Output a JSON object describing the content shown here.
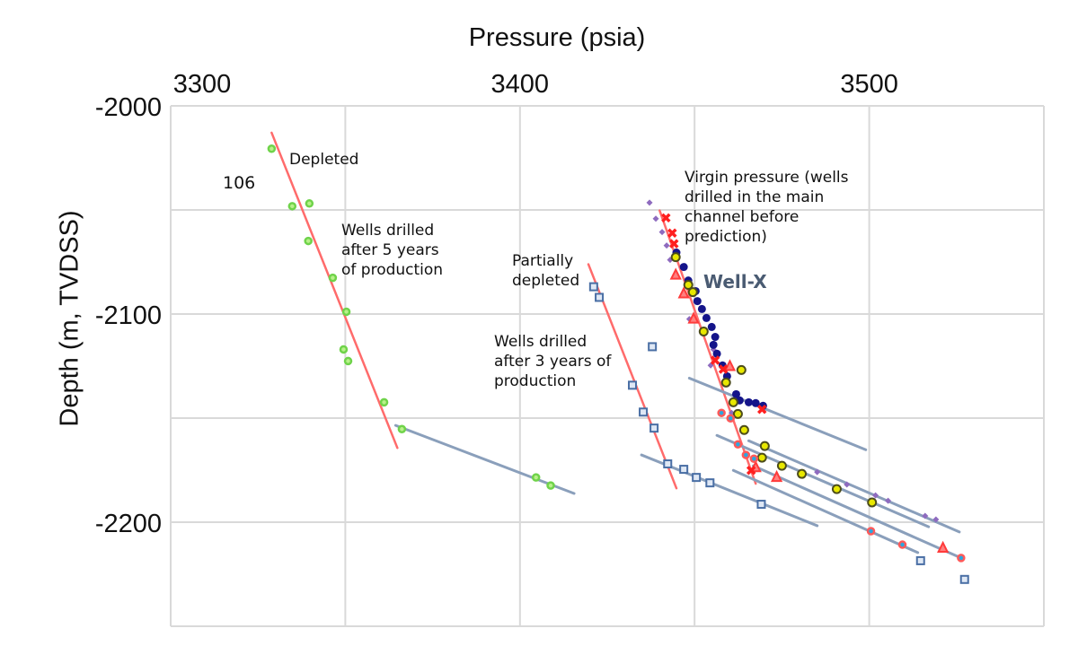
{
  "chart_data": {
    "type": "scatter",
    "title": "",
    "xlabel": "Pressure (psia)",
    "ylabel": "Depth (m, TVDSS)",
    "xlim": [
      3300,
      3550
    ],
    "ylim": [
      -2250,
      -2000
    ],
    "x_axis_position": "top",
    "x_ticks": [
      3300,
      3400,
      3500
    ],
    "x_tick_labels": [
      "3300",
      "3400",
      "3500"
    ],
    "x_gridlines": [
      3300,
      3350,
      3400,
      3450,
      3500,
      3550
    ],
    "y_ticks": [
      -2000,
      -2100,
      -2200
    ],
    "y_tick_labels": [
      "-2000",
      "-2100",
      "-2200"
    ],
    "y_gridlines": [
      -2000,
      -2050,
      -2100,
      -2150,
      -2200,
      -2250
    ],
    "grid": true,
    "colors": {
      "grid": "#d9d9d9",
      "trend_red": "#ff6b6b",
      "trend_blue": "#8a9fbb"
    },
    "annotations": {
      "depleted": "Depleted",
      "label_106": "106",
      "after5": "Wells drilled\nafter 5 years\nof production",
      "partially": "Partially\ndepleted",
      "after3": "Wells drilled\nafter 3 years of\nproduction",
      "virgin": "Virgin pressure (wells\ndrilled in the main\nchannel before\nprediction)",
      "wellx": "Well-X"
    },
    "series": [
      {
        "marker": "green-circle",
        "color": "#6fd34a",
        "points": [
          [
            3328.9,
            -2020.6
          ],
          [
            3334.8,
            -2048.2
          ],
          [
            3339.7,
            -2046.9
          ],
          [
            3339.4,
            -2064.9
          ],
          [
            3346.4,
            -2082.6
          ],
          [
            3350.3,
            -2098.9
          ],
          [
            3349.5,
            -2117.0
          ],
          [
            3350.8,
            -2122.6
          ],
          [
            3361.1,
            -2142.4
          ],
          [
            3366.2,
            -2155.3
          ],
          [
            3404.6,
            -2178.5
          ],
          [
            3408.8,
            -2182.4
          ]
        ]
      },
      {
        "marker": "blue-square",
        "color": "#4a6fa5",
        "points": [
          [
            3421.1,
            -2086.9
          ],
          [
            3422.7,
            -2092.0
          ],
          [
            3437.9,
            -2115.7
          ],
          [
            3432.2,
            -2134.2
          ],
          [
            3435.3,
            -2147.1
          ],
          [
            3438.4,
            -2154.8
          ],
          [
            3442.3,
            -2172.0
          ],
          [
            3446.9,
            -2174.6
          ],
          [
            3450.5,
            -2178.5
          ],
          [
            3454.4,
            -2181.1
          ],
          [
            3469.1,
            -2191.4
          ],
          [
            3514.7,
            -2218.5
          ],
          [
            3527.3,
            -2227.5
          ]
        ]
      },
      {
        "marker": "purple-diamond",
        "color": "#8e6bbf",
        "points": [
          [
            3437.1,
            -2046.5
          ],
          [
            3438.9,
            -2054.2
          ],
          [
            3440.7,
            -2060.6
          ],
          [
            3442.0,
            -2067.1
          ],
          [
            3443.0,
            -2074.0
          ],
          [
            3448.5,
            -2102.4
          ],
          [
            3455.4,
            -2117.0
          ],
          [
            3454.6,
            -2124.7
          ],
          [
            3460.6,
            -2147.5
          ],
          [
            3485.1,
            -2175.9
          ],
          [
            3493.6,
            -2181.9
          ],
          [
            3501.8,
            -2187.1
          ],
          [
            3505.4,
            -2189.7
          ],
          [
            3516.0,
            -2197.0
          ],
          [
            3519.1,
            -2198.7
          ]
        ]
      },
      {
        "marker": "navy-circle",
        "color": "#14148a",
        "points": [
          [
            3444.8,
            -2070.5
          ],
          [
            3446.9,
            -2077.4
          ],
          [
            3448.2,
            -2083.9
          ],
          [
            3450.3,
            -2089.0
          ],
          [
            3450.8,
            -2093.8
          ],
          [
            3452.1,
            -2097.6
          ],
          [
            3453.4,
            -2101.9
          ],
          [
            3454.9,
            -2106.2
          ],
          [
            3455.9,
            -2111.0
          ],
          [
            3455.4,
            -2114.8
          ],
          [
            3456.4,
            -2119.1
          ],
          [
            3458.0,
            -2124.7
          ],
          [
            3459.3,
            -2129.9
          ],
          [
            3461.9,
            -2138.5
          ],
          [
            3462.9,
            -2141.5
          ],
          [
            3465.5,
            -2142.4
          ],
          [
            3467.5,
            -2142.8
          ],
          [
            3469.6,
            -2144.1
          ]
        ]
      },
      {
        "marker": "yellow-circle",
        "color": "#e8e800",
        "points": [
          [
            3444.6,
            -2072.7
          ],
          [
            3448.2,
            -2086.0
          ],
          [
            3449.5,
            -2089.5
          ],
          [
            3452.6,
            -2108.4
          ],
          [
            3463.4,
            -2126.9
          ],
          [
            3459.0,
            -2132.9
          ],
          [
            3461.1,
            -2142.4
          ],
          [
            3462.4,
            -2148.0
          ],
          [
            3464.2,
            -2155.7
          ],
          [
            3470.1,
            -2163.4
          ],
          [
            3469.3,
            -2169.0
          ],
          [
            3475.0,
            -2172.9
          ],
          [
            3480.7,
            -2176.8
          ],
          [
            3490.7,
            -2184.1
          ],
          [
            3500.8,
            -2190.5
          ]
        ]
      },
      {
        "marker": "red-triangle",
        "color": "#ff3b3b",
        "points": [
          [
            3444.6,
            -2081.3
          ],
          [
            3446.9,
            -2090.3
          ],
          [
            3449.7,
            -2102.4
          ],
          [
            3460.1,
            -2125.2
          ],
          [
            3473.5,
            -2178.5
          ],
          [
            3521.1,
            -2212.5
          ],
          [
            3467.5,
            -2173.8
          ]
        ]
      },
      {
        "marker": "red-x",
        "color": "#ff1f1f",
        "points": [
          [
            3441.8,
            -2053.8
          ],
          [
            3443.6,
            -2061.1
          ],
          [
            3444.1,
            -2066.2
          ],
          [
            3455.9,
            -2122.2
          ],
          [
            3458.2,
            -2126.5
          ],
          [
            3469.3,
            -2145.8
          ],
          [
            3466.2,
            -2175.1
          ]
        ]
      },
      {
        "marker": "cyan-circle",
        "color": "#2aa7e0",
        "points": [
          [
            3457.7,
            -2147.5
          ],
          [
            3460.3,
            -2150.1
          ],
          [
            3462.4,
            -2162.6
          ],
          [
            3464.7,
            -2167.7
          ],
          [
            3467.0,
            -2169.5
          ],
          [
            3500.5,
            -2204.3
          ],
          [
            3509.5,
            -2210.8
          ],
          [
            3526.3,
            -2217.2
          ]
        ]
      }
    ],
    "trend_lines": [
      {
        "kind": "red",
        "from": [
          3328.9,
          -2012.9
        ],
        "to": [
          3364.9,
          -2164.3
        ]
      },
      {
        "kind": "blue",
        "from": [
          3364.4,
          -2153.5
        ],
        "to": [
          3415.5,
          -2186.2
        ]
      },
      {
        "kind": "red",
        "from": [
          3419.6,
          -2076.1
        ],
        "to": [
          3444.8,
          -2183.7
        ]
      },
      {
        "kind": "blue",
        "from": [
          3434.8,
          -2167.7
        ],
        "to": [
          3485.1,
          -2201.7
        ]
      },
      {
        "kind": "red",
        "from": [
          3440.0,
          -2050.3
        ],
        "to": [
          3467.5,
          -2181.5
        ]
      },
      {
        "kind": "blue",
        "from": [
          3448.5,
          -2130.8
        ],
        "to": [
          3499.0,
          -2165.2
        ]
      },
      {
        "kind": "blue",
        "from": [
          3465.5,
          -2160.9
        ],
        "to": [
          3525.8,
          -2204.7
        ]
      },
      {
        "kind": "blue",
        "from": [
          3456.4,
          -2158.3
        ],
        "to": [
          3517.0,
          -2202.2
        ]
      },
      {
        "kind": "blue",
        "from": [
          3461.1,
          -2175.1
        ],
        "to": [
          3513.9,
          -2214.6
        ]
      },
      {
        "kind": "blue",
        "from": [
          3466.8,
          -2172.9
        ],
        "to": [
          3526.3,
          -2217.2
        ]
      }
    ]
  }
}
